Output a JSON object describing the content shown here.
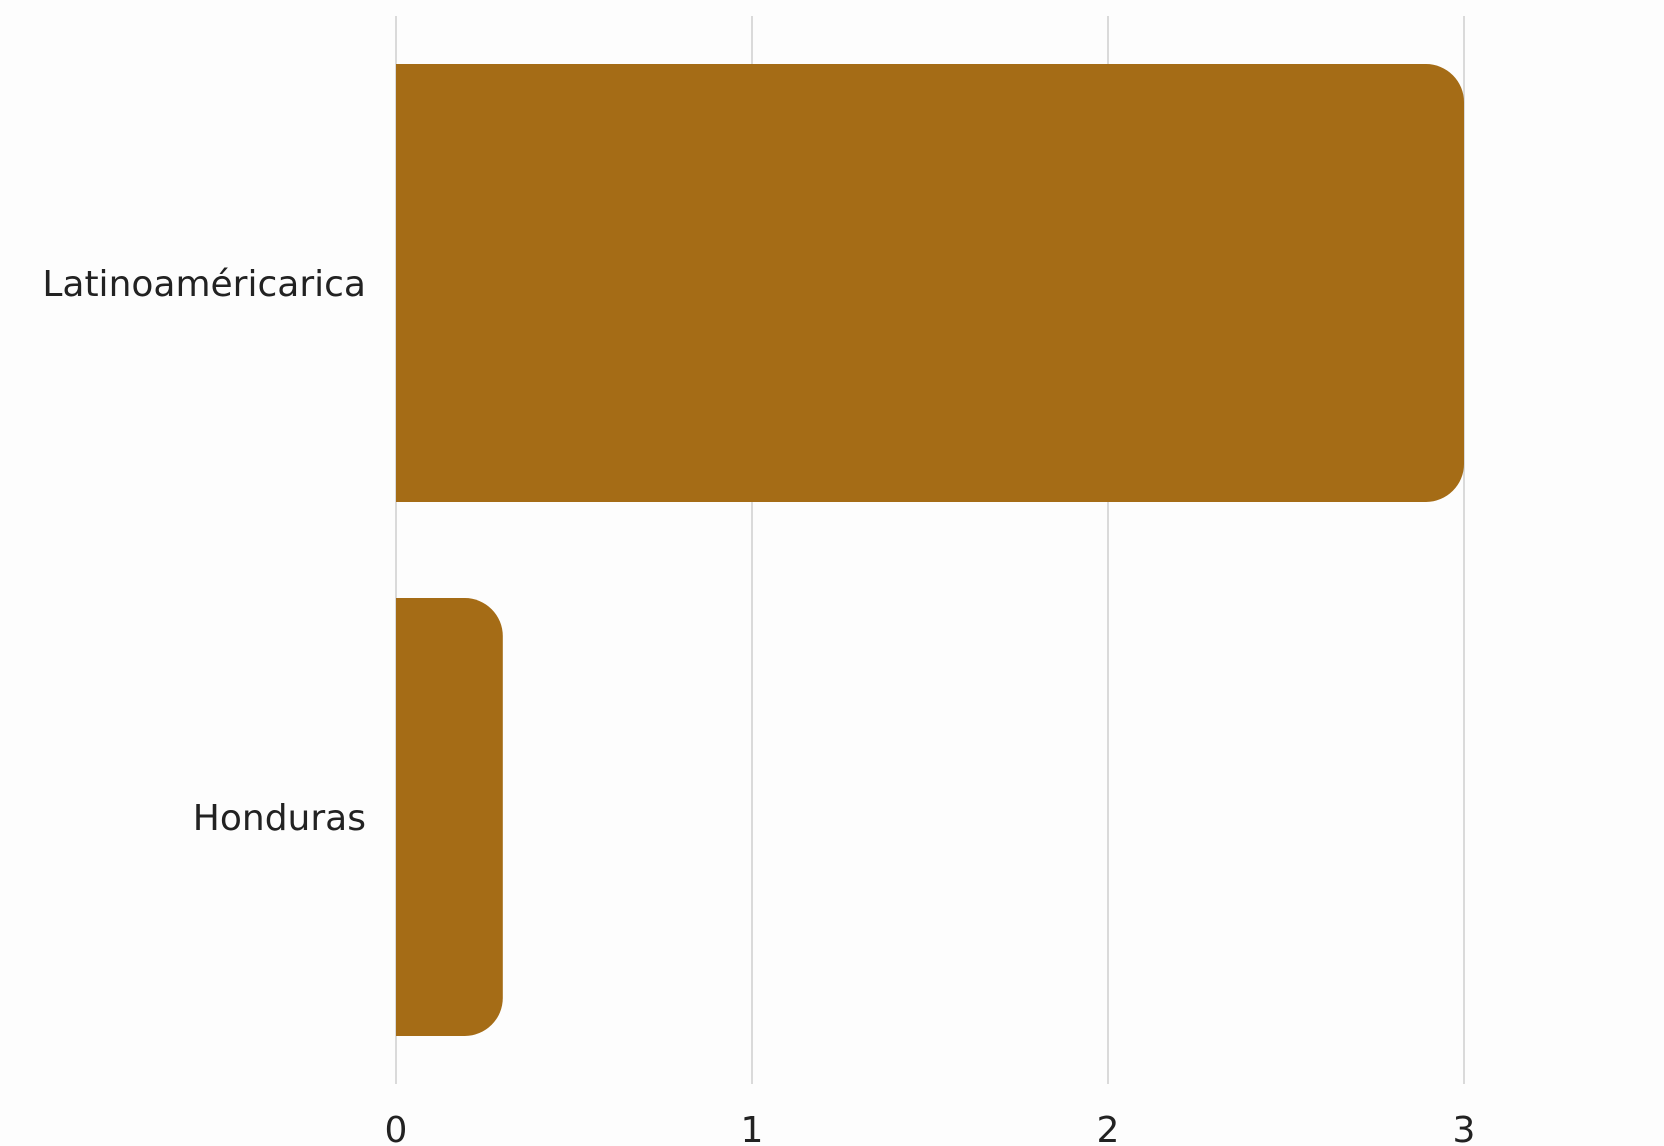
{
  "chart_data": {
    "type": "bar",
    "orientation": "horizontal",
    "title": "",
    "xlabel": "",
    "ylabel": "",
    "categories": [
      "Latinoaméricarica",
      "Honduras"
    ],
    "values": [
      3,
      0.3
    ],
    "xlim": [
      0,
      3
    ],
    "x_ticks": [
      "0",
      "1",
      "2",
      "3"
    ],
    "grid": "vertical",
    "bar_color": "#a56c16",
    "gridline_color": "#cfcfcf"
  }
}
